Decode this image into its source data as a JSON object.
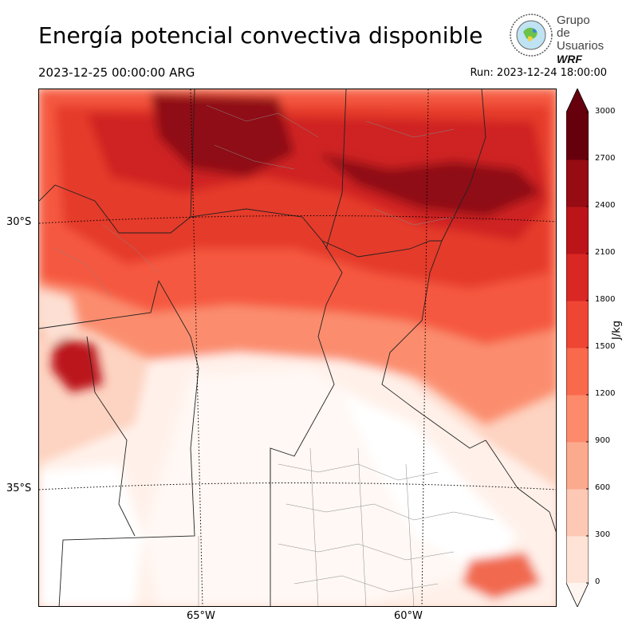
{
  "header": {
    "title": "Energía potencial convectiva disponible",
    "valid_time": "2023-12-25 00:00:00 ARG",
    "run_time": "Run: 2023-12-24 18:00:00"
  },
  "logo": {
    "line1": "Grupo de",
    "line2": "Usuarios",
    "line3": "WRF"
  },
  "map": {
    "lat_labels": [
      "30°S",
      "35°S"
    ],
    "lon_labels": [
      "65°W",
      "60°W"
    ]
  },
  "colorbar": {
    "unit": "J/kg",
    "ticks": [
      "0",
      "300",
      "600",
      "900",
      "1200",
      "1500",
      "1800",
      "2100",
      "2400",
      "2700",
      "3000"
    ],
    "colors": [
      "#fff5f0",
      "#fee3d6",
      "#fdc9b4",
      "#fcaa8e",
      "#fc8a6b",
      "#f9694c",
      "#ef4533",
      "#d92723",
      "#bb151a",
      "#970b13",
      "#67000d"
    ]
  }
}
